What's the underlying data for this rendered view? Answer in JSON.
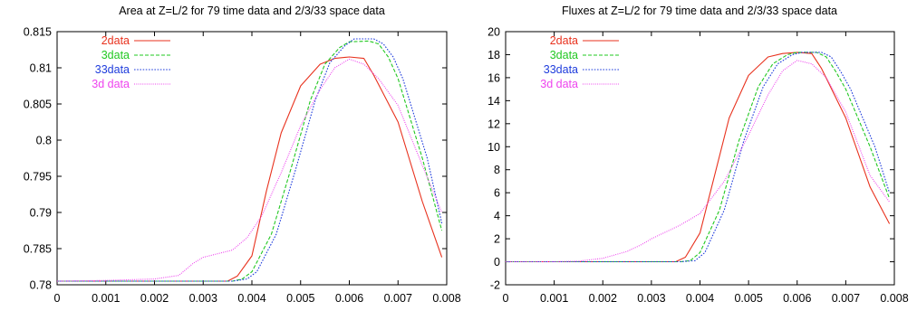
{
  "chart_data": [
    {
      "type": "line",
      "title": "Area at Z=L/2 for 79 time data and 2/3/33 space data",
      "xlabel": "",
      "ylabel": "",
      "xlim": [
        0,
        0.008
      ],
      "ylim": [
        0.78,
        0.815
      ],
      "xticks": [
        "0",
        "0.001",
        "0.002",
        "0.003",
        "0.004",
        "0.005",
        "0.006",
        "0.007",
        "0.008"
      ],
      "yticks": [
        "0.78",
        "0.785",
        "0.79",
        "0.795",
        "0.8",
        "0.805",
        "0.81",
        "0.815"
      ],
      "grid": false,
      "legend_position": "top-left",
      "series": [
        {
          "name": "2data",
          "color": "#e8321e",
          "dash": "solid",
          "x": [
            0,
            0.001,
            0.002,
            0.003,
            0.0035,
            0.0037,
            0.004,
            0.0043,
            0.0046,
            0.005,
            0.0054,
            0.0057,
            0.006,
            0.0063,
            0.0065,
            0.007,
            0.0075,
            0.0079
          ],
          "y": [
            0.7805,
            0.7805,
            0.7805,
            0.7805,
            0.7805,
            0.7812,
            0.784,
            0.793,
            0.801,
            0.8075,
            0.8105,
            0.8113,
            0.8115,
            0.8113,
            0.809,
            0.8025,
            0.7915,
            0.7838
          ]
        },
        {
          "name": "3data",
          "color": "#22c822",
          "dash": "dashed",
          "x": [
            0,
            0.001,
            0.002,
            0.003,
            0.0036,
            0.0038,
            0.004,
            0.0044,
            0.0048,
            0.0052,
            0.0055,
            0.0058,
            0.006,
            0.0064,
            0.0066,
            0.0068,
            0.007,
            0.0075,
            0.0079
          ],
          "y": [
            0.7805,
            0.7805,
            0.7805,
            0.7805,
            0.7805,
            0.7808,
            0.7818,
            0.787,
            0.796,
            0.8055,
            0.8105,
            0.8128,
            0.8136,
            0.8137,
            0.8133,
            0.8115,
            0.8085,
            0.7975,
            0.7875
          ]
        },
        {
          "name": "33data",
          "color": "#1e3cdc",
          "dash": "dotted",
          "x": [
            0,
            0.001,
            0.002,
            0.003,
            0.0036,
            0.0039,
            0.0041,
            0.0045,
            0.0049,
            0.0053,
            0.0056,
            0.0059,
            0.0061,
            0.0065,
            0.0067,
            0.0069,
            0.0071,
            0.0076,
            0.0079
          ],
          "y": [
            0.7805,
            0.7805,
            0.7805,
            0.7805,
            0.7805,
            0.7808,
            0.7818,
            0.787,
            0.796,
            0.8055,
            0.8107,
            0.813,
            0.814,
            0.814,
            0.8133,
            0.8115,
            0.8085,
            0.7975,
            0.7885
          ]
        },
        {
          "name": "3d data",
          "color": "#ee44ee",
          "dash": "finedot",
          "x": [
            0,
            0.001,
            0.002,
            0.0025,
            0.0028,
            0.003,
            0.0033,
            0.0036,
            0.0039,
            0.0042,
            0.0046,
            0.005,
            0.0054,
            0.0057,
            0.006,
            0.0063,
            0.0066,
            0.007,
            0.0075,
            0.0079
          ],
          "y": [
            0.7805,
            0.7806,
            0.7808,
            0.7813,
            0.783,
            0.7838,
            0.7843,
            0.7848,
            0.7865,
            0.7895,
            0.7955,
            0.802,
            0.807,
            0.81,
            0.8112,
            0.8105,
            0.8085,
            0.8048,
            0.7965,
            0.79
          ]
        }
      ]
    },
    {
      "type": "line",
      "title": "Fluxes at Z=L/2 for 79 time data and 2/3/33 space data",
      "xlabel": "",
      "ylabel": "",
      "xlim": [
        0,
        0.008
      ],
      "ylim": [
        -2,
        20
      ],
      "xticks": [
        "0",
        "0.001",
        "0.002",
        "0.003",
        "0.004",
        "0.005",
        "0.006",
        "0.007",
        "0.008"
      ],
      "yticks": [
        "-2",
        "0",
        "2",
        "4",
        "6",
        "8",
        "10",
        "12",
        "14",
        "16",
        "18",
        "20"
      ],
      "grid": false,
      "legend_position": "top-left",
      "series": [
        {
          "name": "2data",
          "color": "#e8321e",
          "dash": "solid",
          "x": [
            0,
            0.001,
            0.002,
            0.003,
            0.0035,
            0.0037,
            0.004,
            0.0043,
            0.0046,
            0.005,
            0.0054,
            0.0057,
            0.006,
            0.0063,
            0.0065,
            0.007,
            0.0075,
            0.0079
          ],
          "y": [
            0,
            0,
            0,
            0,
            0,
            0.4,
            2.5,
            7.5,
            12.5,
            16.2,
            17.8,
            18.1,
            18.2,
            18.1,
            16.8,
            12.5,
            6.5,
            3.3
          ]
        },
        {
          "name": "3data",
          "color": "#22c822",
          "dash": "dashed",
          "x": [
            0,
            0.001,
            0.002,
            0.003,
            0.0036,
            0.0038,
            0.004,
            0.0044,
            0.0048,
            0.0052,
            0.0055,
            0.0058,
            0.006,
            0.0064,
            0.0066,
            0.0068,
            0.007,
            0.0075,
            0.0079
          ],
          "y": [
            0,
            0,
            0,
            0,
            0,
            0.1,
            0.8,
            4.5,
            10.5,
            15.2,
            17.2,
            18.0,
            18.2,
            18.2,
            17.8,
            16.5,
            15.0,
            10.0,
            5.5
          ]
        },
        {
          "name": "33data",
          "color": "#1e3cdc",
          "dash": "dotted",
          "x": [
            0,
            0.001,
            0.002,
            0.003,
            0.0036,
            0.0039,
            0.0041,
            0.0045,
            0.0049,
            0.0053,
            0.0056,
            0.0059,
            0.0061,
            0.0065,
            0.0067,
            0.0069,
            0.0071,
            0.0076,
            0.0079
          ],
          "y": [
            0,
            0,
            0,
            0,
            0,
            0.1,
            0.8,
            4.5,
            10.5,
            15.2,
            17.2,
            18.0,
            18.2,
            18.2,
            17.8,
            16.5,
            15.0,
            10.0,
            6.0
          ]
        },
        {
          "name": "3d data",
          "color": "#ee44ee",
          "dash": "finedot",
          "x": [
            0,
            0.001,
            0.0015,
            0.002,
            0.0025,
            0.0028,
            0.003,
            0.0033,
            0.0036,
            0.004,
            0.0045,
            0.005,
            0.0054,
            0.0057,
            0.006,
            0.0063,
            0.0066,
            0.007,
            0.0075,
            0.0079
          ],
          "y": [
            0,
            0,
            0.05,
            0.3,
            0.9,
            1.5,
            2.0,
            2.6,
            3.2,
            4.2,
            7.0,
            11.0,
            14.5,
            16.6,
            17.5,
            17.2,
            16.0,
            13.0,
            7.5,
            5.2
          ]
        }
      ]
    }
  ]
}
